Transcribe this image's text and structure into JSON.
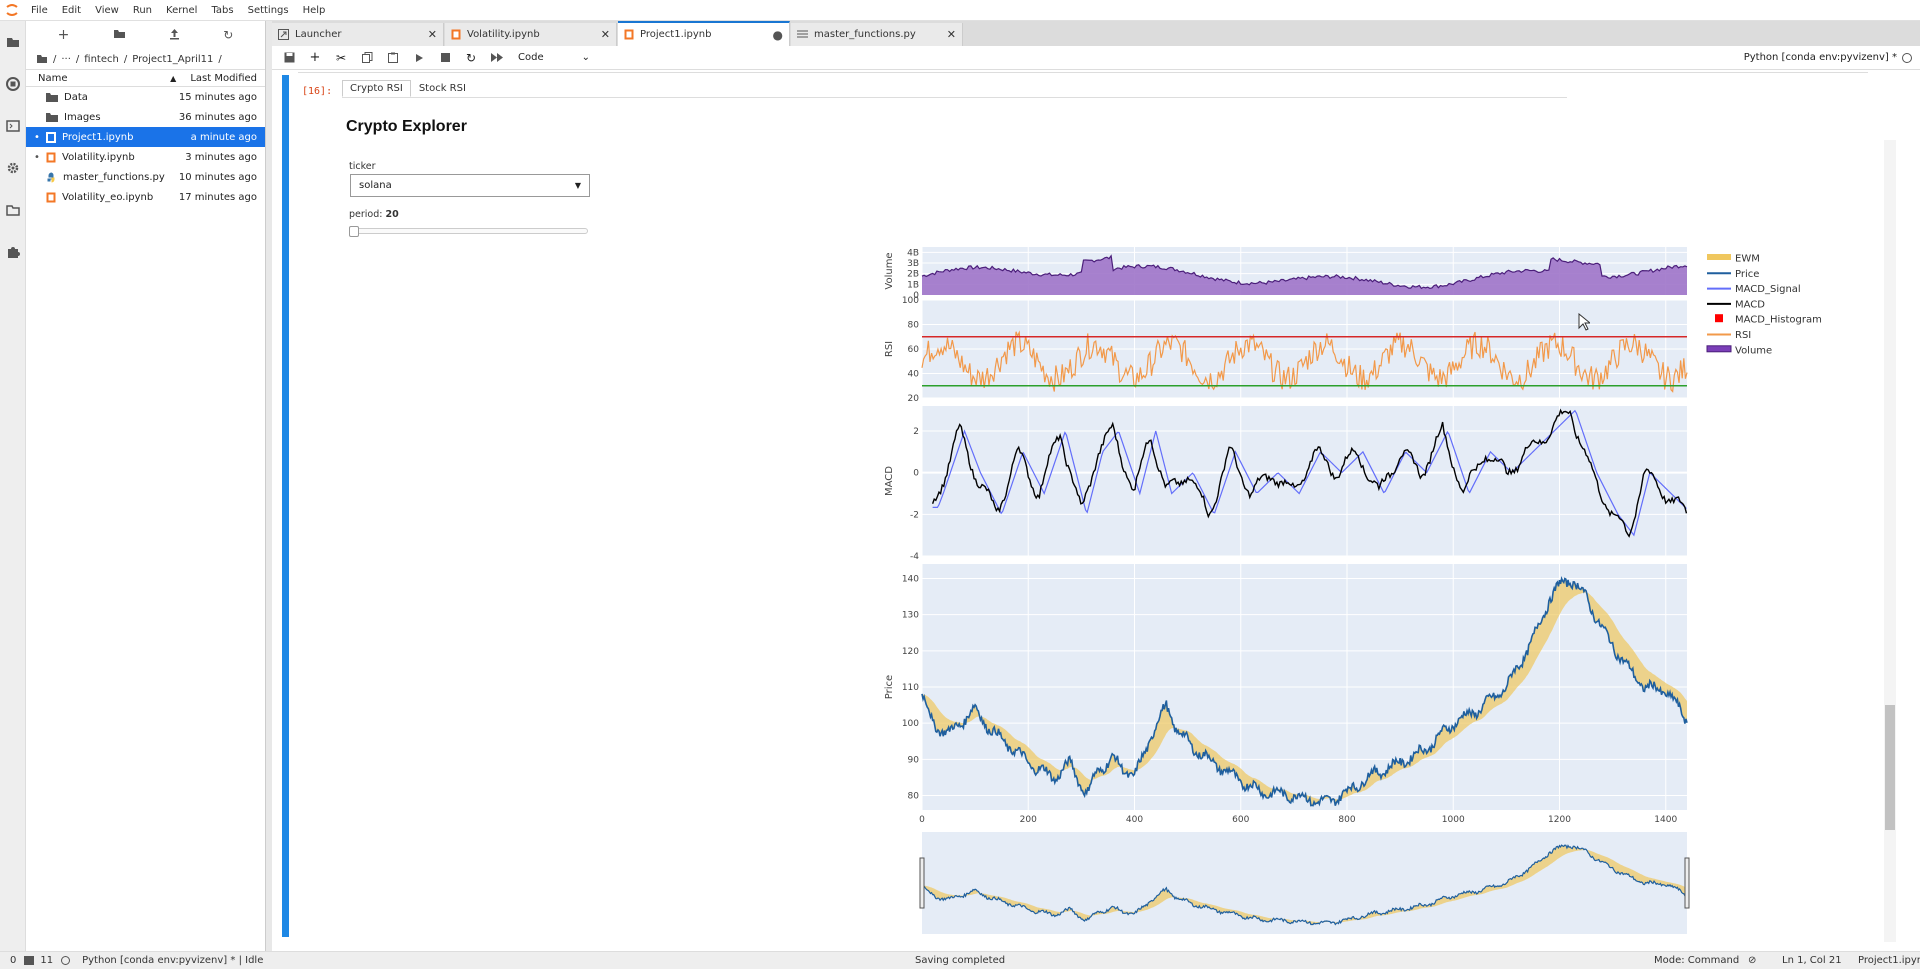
{
  "menu": [
    "File",
    "Edit",
    "View",
    "Run",
    "Kernel",
    "Tabs",
    "Settings",
    "Help"
  ],
  "sidebar_icons": [
    "folder-icon",
    "running-icon",
    "commands-icon",
    "property-inspector-icon",
    "tabs-icon",
    "extension-icon"
  ],
  "file_browser": {
    "breadcrumb": [
      "/",
      "···",
      "/",
      "fintech",
      "/",
      "Project1_April11",
      "/"
    ],
    "col_name": "Name",
    "col_modified": "Last Modified",
    "files": [
      {
        "name": "Data",
        "modified": "15 minutes ago",
        "type": "folder",
        "selected": false
      },
      {
        "name": "Images",
        "modified": "36 minutes ago",
        "type": "folder",
        "selected": false
      },
      {
        "name": "Project1.ipynb",
        "modified": "a minute ago",
        "type": "notebook",
        "selected": true
      },
      {
        "name": "Volatility.ipynb",
        "modified": "3 minutes ago",
        "type": "notebook",
        "selected": false
      },
      {
        "name": "master_functions.py",
        "modified": "10 minutes ago",
        "type": "python",
        "selected": false
      },
      {
        "name": "Volatility_eo.ipynb",
        "modified": "17 minutes ago",
        "type": "notebook",
        "selected": false
      }
    ]
  },
  "tabs": [
    {
      "label": "Launcher",
      "active": false
    },
    {
      "label": "Volatility.ipynb",
      "active": false
    },
    {
      "label": "Project1.ipynb",
      "active": true
    },
    {
      "label": "master_functions.py",
      "active": false
    }
  ],
  "toolbar": {
    "cell_type": "Code",
    "kernel": "Python [conda env:pyvizenv] *"
  },
  "cell": {
    "prompt": "[16]:",
    "subtabs": [
      "Crypto RSI",
      "Stock RSI"
    ],
    "title": "Crypto Explorer",
    "ticker_label": "ticker",
    "ticker_value": "solana",
    "period_label": "period:",
    "period_value": "20"
  },
  "chart_data": {
    "type": "line",
    "panels": [
      {
        "name": "Volume",
        "ylabel": "Volume",
        "yticks": [
          "1B",
          "2B",
          "3B",
          "4B"
        ]
      },
      {
        "name": "RSI",
        "ylabel": "RSI",
        "yticks": [
          20,
          40,
          60,
          80,
          100
        ],
        "hlines": [
          {
            "y": 70,
            "color": "#d62728"
          },
          {
            "y": 30,
            "color": "#2ca02c"
          }
        ]
      },
      {
        "name": "MACD",
        "ylabel": "MACD",
        "yticks": [
          -4,
          -2,
          0,
          2
        ]
      },
      {
        "name": "Price",
        "ylabel": "Price",
        "yticks": [
          80,
          90,
          100,
          110,
          120,
          130,
          140
        ]
      }
    ],
    "xticks": [
      0,
      200,
      400,
      600,
      800,
      1000,
      1200,
      1400
    ],
    "xlim": [
      0,
      1440
    ],
    "price_series": {
      "x": [
        0,
        20,
        50,
        100,
        130,
        170,
        210,
        250,
        280,
        310,
        330,
        360,
        400,
        430,
        460,
        480,
        520,
        560,
        600,
        640,
        700,
        760,
        800,
        850,
        900,
        950,
        1000,
        1050,
        1100,
        1150,
        1180,
        1200,
        1220,
        1250,
        1280,
        1330,
        1360,
        1400,
        1440
      ],
      "y": [
        108,
        100,
        97,
        104,
        98,
        93,
        88,
        85,
        89,
        80,
        87,
        90,
        85,
        96,
        105,
        98,
        92,
        88,
        84,
        81,
        80,
        78,
        81,
        86,
        89,
        93,
        100,
        104,
        110,
        123,
        134,
        138,
        140,
        135,
        126,
        115,
        110,
        109,
        101
      ]
    },
    "macd_series": {
      "x": [
        0,
        30,
        70,
        100,
        140,
        180,
        220,
        260,
        300,
        330,
        360,
        400,
        430,
        460,
        500,
        540,
        580,
        620,
        660,
        700,
        740,
        780,
        820,
        860,
        900,
        940,
        980,
        1020,
        1060,
        1100,
        1140,
        1180,
        1220,
        1260,
        1300,
        1330,
        1360,
        1400,
        1440
      ],
      "y": [
        -3,
        -1,
        2,
        0,
        -2,
        1,
        -1,
        2,
        -2,
        1,
        2,
        -1,
        2,
        -1,
        0,
        -2,
        1,
        -1,
        0,
        -1,
        1,
        0,
        1,
        -1,
        1,
        0,
        2,
        -1,
        1,
        0,
        1,
        2,
        3,
        0,
        -2,
        -3,
        0,
        -1,
        -2
      ]
    },
    "legend": [
      {
        "name": "EWM",
        "color": "#f0c75e",
        "style": "area"
      },
      {
        "name": "Price",
        "color": "#1f5f9e",
        "style": "line"
      },
      {
        "name": "MACD_Signal",
        "color": "#636efa",
        "style": "line"
      },
      {
        "name": "MACD",
        "color": "#000000",
        "style": "line"
      },
      {
        "name": "MACD_Histogram",
        "color": "#ff0000",
        "style": "square"
      },
      {
        "name": "RSI",
        "color": "#f2994a",
        "style": "line"
      },
      {
        "name": "Volume",
        "color": "#7b3fb8",
        "style": "area"
      }
    ],
    "legend_position": "right"
  },
  "status": {
    "left_num1": "0",
    "left_num2": "11",
    "kernel_status": "Python [conda env:pyvizenv] * | Idle",
    "center": "Saving completed",
    "mode": "Mode: Command",
    "position": "Ln 1, Col 21",
    "file": "Project1.ipynb"
  }
}
